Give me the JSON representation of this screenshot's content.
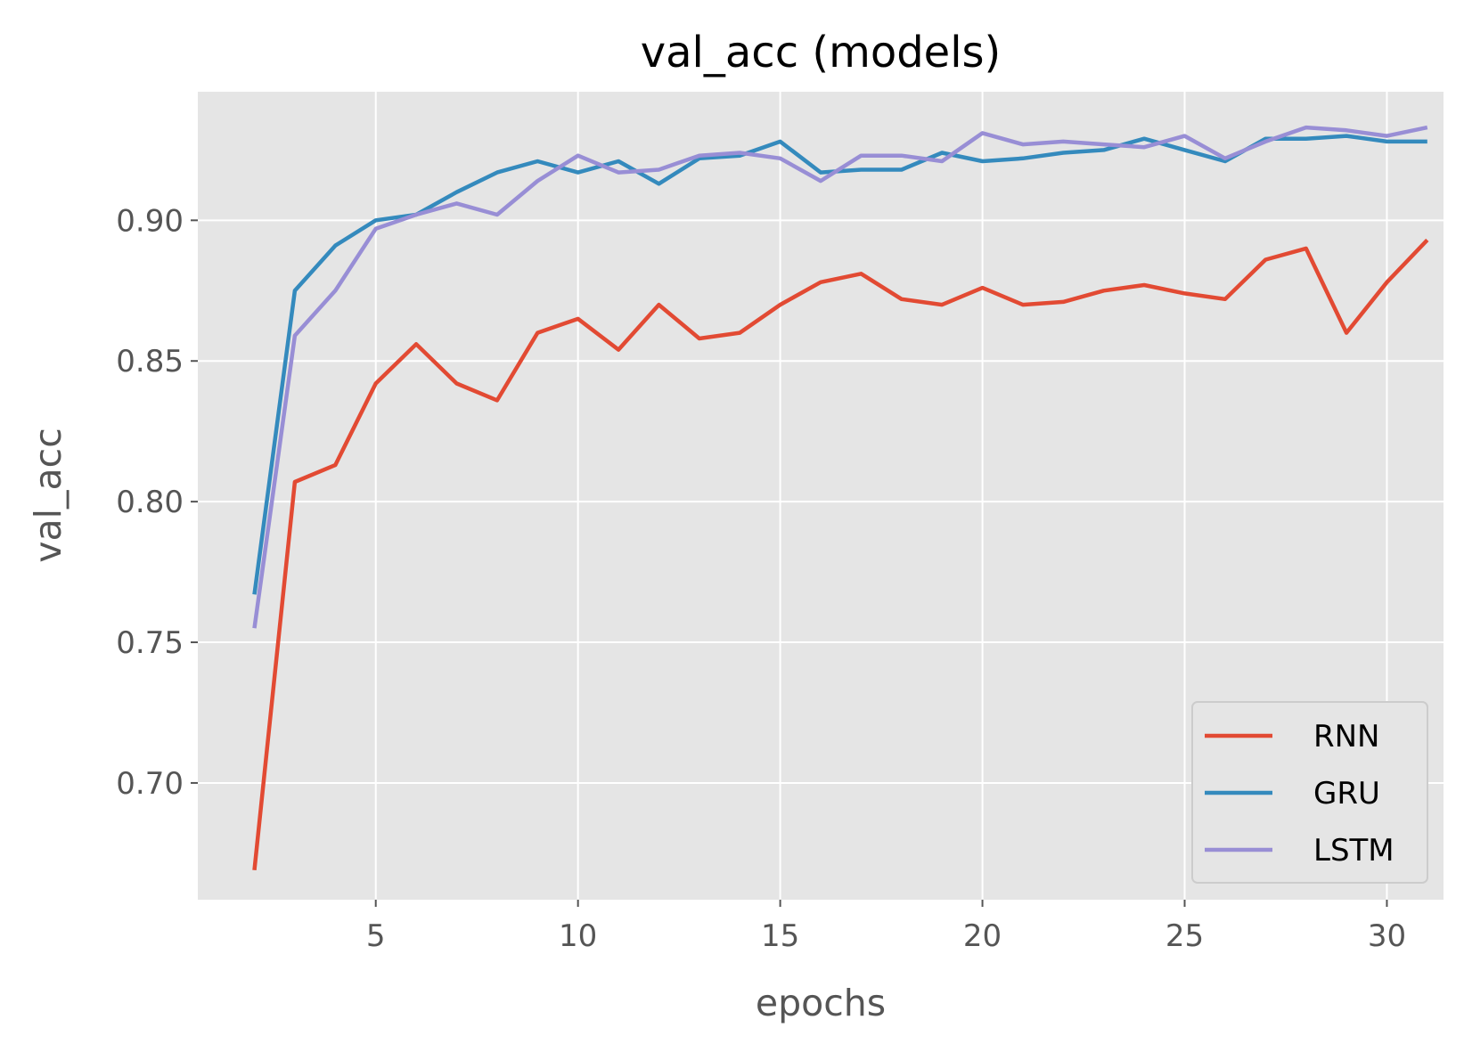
{
  "chart_data": {
    "type": "line",
    "title": "val_acc (models)",
    "xlabel": "epochs",
    "ylabel": "val_acc",
    "xlim": [
      0.6,
      31.4
    ],
    "ylim": [
      0.6585,
      0.9457
    ],
    "xticks": [
      5,
      10,
      15,
      20,
      25,
      30
    ],
    "xtick_labels": [
      "5",
      "10",
      "15",
      "20",
      "25",
      "30"
    ],
    "yticks": [
      0.7,
      0.75,
      0.8,
      0.85,
      0.9
    ],
    "ytick_labels": [
      "0.70",
      "0.75",
      "0.80",
      "0.85",
      "0.90"
    ],
    "grid": true,
    "legend_position": "lower-right",
    "colors": {
      "background": "#e5e5e5",
      "grid": "#ffffff",
      "RNN": "#e24a33",
      "GRU": "#348abd",
      "LSTM": "#988ed5"
    },
    "x": [
      2,
      3,
      4,
      5,
      6,
      7,
      8,
      9,
      10,
      11,
      12,
      13,
      14,
      15,
      16,
      17,
      18,
      19,
      20,
      21,
      22,
      23,
      24,
      25,
      26,
      27,
      28,
      29,
      30,
      31
    ],
    "series": [
      {
        "name": "RNN",
        "color": "#e24a33",
        "values": [
          0.669,
          0.807,
          0.813,
          0.842,
          0.856,
          0.842,
          0.836,
          0.86,
          0.865,
          0.854,
          0.87,
          0.858,
          0.86,
          0.87,
          0.878,
          0.881,
          0.872,
          0.87,
          0.876,
          0.87,
          0.871,
          0.875,
          0.877,
          0.874,
          0.872,
          0.886,
          0.89,
          0.86,
          0.878,
          0.893
        ]
      },
      {
        "name": "GRU",
        "color": "#348abd",
        "values": [
          0.767,
          0.875,
          0.891,
          0.9,
          0.902,
          0.91,
          0.917,
          0.921,
          0.917,
          0.921,
          0.913,
          0.922,
          0.923,
          0.928,
          0.917,
          0.918,
          0.918,
          0.924,
          0.921,
          0.922,
          0.924,
          0.925,
          0.929,
          0.925,
          0.921,
          0.929,
          0.929,
          0.93,
          0.928,
          0.928
        ]
      },
      {
        "name": "LSTM",
        "color": "#988ed5",
        "values": [
          0.755,
          0.859,
          0.875,
          0.897,
          0.902,
          0.906,
          0.902,
          0.914,
          0.923,
          0.917,
          0.918,
          0.923,
          0.924,
          0.922,
          0.914,
          0.923,
          0.923,
          0.921,
          0.931,
          0.927,
          0.928,
          0.927,
          0.926,
          0.93,
          0.922,
          0.928,
          0.933,
          0.932,
          0.93,
          0.933
        ]
      }
    ]
  }
}
